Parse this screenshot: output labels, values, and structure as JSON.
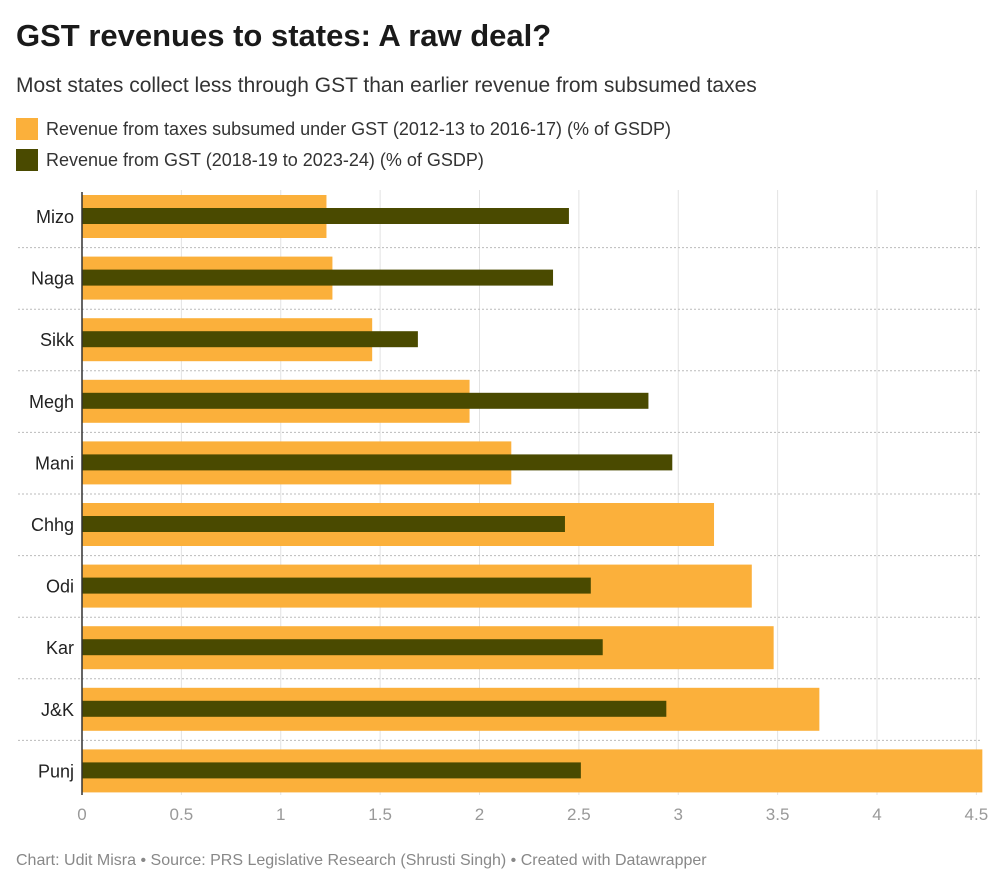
{
  "title": "GST revenues to states: A raw deal?",
  "subtitle": "Most states collect less through GST than earlier revenue from subsumed taxes",
  "footer": "Chart: Udit Misra • Source: PRS Legislative Research (Shrusti Singh) • Created with Datawrapper",
  "chart_data": {
    "type": "bar",
    "orientation": "horizontal",
    "categories": [
      "Mizo",
      "Naga",
      "Sikk",
      "Megh",
      "Mani",
      "Chhg",
      "Odi",
      "Kar",
      "J&K",
      "Punj"
    ],
    "series": [
      {
        "name": "Revenue from taxes subsumed under GST (2012-13 to 2016-17) (% of GSDP)",
        "color": "#fbb03b",
        "values": [
          1.23,
          1.26,
          1.46,
          1.95,
          2.16,
          3.18,
          3.37,
          3.48,
          3.71,
          4.53
        ]
      },
      {
        "name": "Revenue from GST (2018-19 to 2023-24) (% of GSDP)",
        "color": "#4a4a00",
        "values": [
          2.45,
          2.37,
          1.69,
          2.85,
          2.97,
          2.43,
          2.56,
          2.62,
          2.94,
          2.51
        ]
      }
    ],
    "xlim": [
      0,
      4.53
    ],
    "xticks": [
      "0",
      "0.5",
      "1",
      "1.5",
      "2",
      "2.5",
      "3",
      "3.5",
      "4",
      "4.5"
    ],
    "grid": true,
    "legend": "top-left"
  }
}
